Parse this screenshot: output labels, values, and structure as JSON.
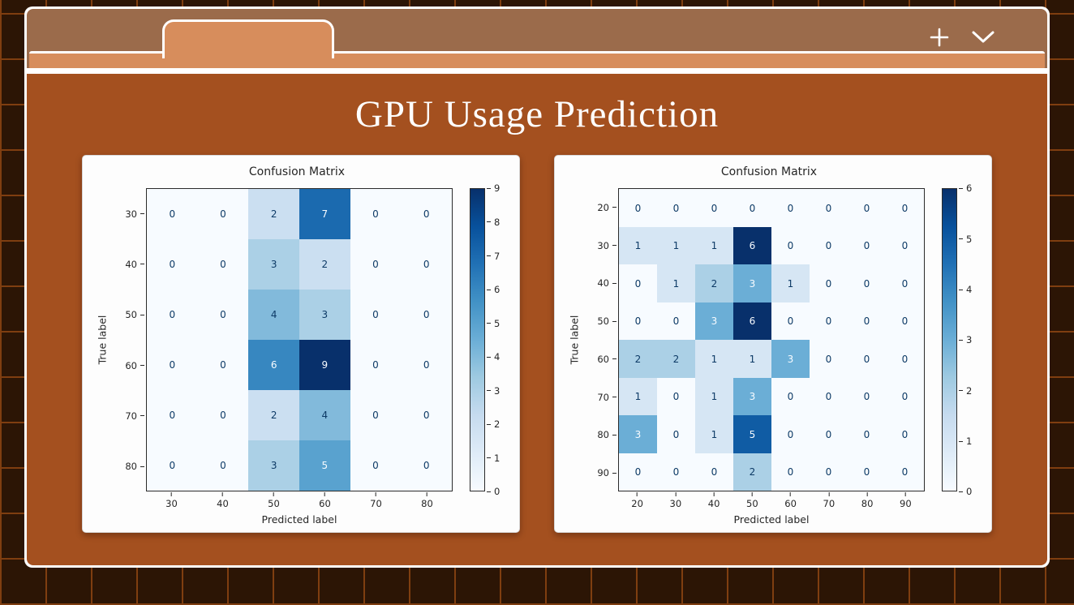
{
  "window": {
    "controls": {
      "new_tab_icon": "plus-icon",
      "tab_menu_icon": "chevron-down-icon"
    }
  },
  "page": {
    "title": "GPU Usage Prediction"
  },
  "theme": {
    "desktop_bg": "#2c1505",
    "desktop_grid_line": "#7f3e10",
    "chrome_bg": "#9b6b4b",
    "tab_bg": "#d78d5c",
    "content_bg": "#a4501f",
    "window_border": "#ffffff",
    "card_bg": "#fdfdfd",
    "cell_text_dark": "#0d3a66",
    "cell_text_light": "#f7fbff"
  },
  "chart_data": [
    {
      "type": "heatmap",
      "title": "Confusion Matrix",
      "xlabel": "Predicted label",
      "ylabel": "True label",
      "colormap": "Blues",
      "x_ticklabels": [
        "30",
        "40",
        "50",
        "60",
        "70",
        "80"
      ],
      "y_ticklabels": [
        "30",
        "40",
        "50",
        "60",
        "70",
        "80"
      ],
      "matrix": [
        [
          0,
          0,
          2,
          7,
          0,
          0
        ],
        [
          0,
          0,
          3,
          2,
          0,
          0
        ],
        [
          0,
          0,
          4,
          3,
          0,
          0
        ],
        [
          0,
          0,
          6,
          9,
          0,
          0
        ],
        [
          0,
          0,
          2,
          4,
          0,
          0
        ],
        [
          0,
          0,
          3,
          5,
          0,
          0
        ]
      ],
      "vmin": 0,
      "vmax": 9,
      "colorbar_ticks": [
        0,
        1,
        2,
        3,
        4,
        5,
        6,
        7,
        8,
        9
      ]
    },
    {
      "type": "heatmap",
      "title": "Confusion Matrix",
      "xlabel": "Predicted label",
      "ylabel": "True label",
      "colormap": "Blues",
      "x_ticklabels": [
        "20",
        "30",
        "40",
        "50",
        "60",
        "70",
        "80",
        "90"
      ],
      "y_ticklabels": [
        "20",
        "30",
        "40",
        "50",
        "60",
        "70",
        "80",
        "90"
      ],
      "matrix": [
        [
          0,
          0,
          0,
          0,
          0,
          0,
          0,
          0
        ],
        [
          1,
          1,
          1,
          6,
          0,
          0,
          0,
          0
        ],
        [
          0,
          1,
          2,
          3,
          1,
          0,
          0,
          0
        ],
        [
          0,
          0,
          3,
          6,
          0,
          0,
          0,
          0
        ],
        [
          2,
          2,
          1,
          1,
          3,
          0,
          0,
          0
        ],
        [
          1,
          0,
          1,
          3,
          0,
          0,
          0,
          0
        ],
        [
          3,
          0,
          1,
          5,
          0,
          0,
          0,
          0
        ],
        [
          0,
          0,
          0,
          2,
          0,
          0,
          0,
          0
        ]
      ],
      "vmin": 0,
      "vmax": 6,
      "colorbar_ticks": [
        0,
        1,
        2,
        3,
        4,
        5,
        6
      ]
    }
  ]
}
